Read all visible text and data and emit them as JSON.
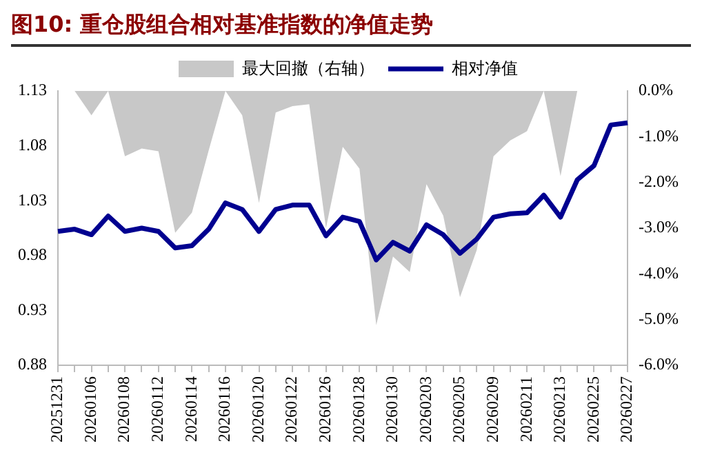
{
  "chart_data": {
    "type": "line",
    "title": "图10:  重仓股组合相对基准指数的净值走势",
    "categories": [
      "20251231",
      null,
      "20260106",
      null,
      "20260108",
      null,
      "20260112",
      null,
      "20260114",
      null,
      "20260116",
      null,
      "20260120",
      null,
      "20260122",
      null,
      "20260126",
      null,
      "20260128",
      null,
      "20260130",
      null,
      "20260203",
      null,
      "20260205",
      null,
      "20260209",
      null,
      "20260211",
      null,
      "20260213",
      null,
      "20260225",
      null,
      "20260227"
    ],
    "series": [
      {
        "name": "最大回撤（右轴）",
        "type": "area",
        "axis": "y2",
        "color": "#c8c8c8",
        "values": [
          0,
          0,
          -0.53,
          0,
          -1.43,
          -1.26,
          -1.32,
          -3.1,
          -2.66,
          -1.3,
          0,
          -0.53,
          -2.45,
          -0.47,
          -0.33,
          -0.29,
          -3.0,
          -1.22,
          -1.7,
          -5.12,
          -3.62,
          -3.96,
          -2.04,
          -2.73,
          -4.51,
          -3.48,
          -1.43,
          -1.08,
          -0.88,
          0,
          -1.86,
          0,
          0,
          0,
          0
        ]
      },
      {
        "name": "相对净值",
        "type": "line",
        "color": "#000090",
        "values": [
          1.002,
          1.004,
          0.999,
          1.016,
          1.002,
          1.005,
          1.002,
          0.987,
          0.989,
          1.004,
          1.028,
          1.022,
          1.002,
          1.022,
          1.026,
          1.026,
          0.998,
          1.015,
          1.011,
          0.976,
          0.992,
          0.984,
          1.008,
          0.999,
          0.982,
          0.995,
          1.015,
          1.018,
          1.019,
          1.035,
          1.015,
          1.049,
          1.062,
          1.099,
          1.101
        ]
      }
    ],
    "ylim": [
      0.88,
      1.13
    ],
    "yticks": [
      0.88,
      0.93,
      0.98,
      1.03,
      1.08,
      1.13
    ],
    "y2lim": [
      -6,
      0
    ],
    "y2ticks": [
      {
        "value": -6,
        "label": "-6.0%"
      },
      {
        "value": -5,
        "label": "-5.0%"
      },
      {
        "value": -4,
        "label": "-4.0%"
      },
      {
        "value": -3,
        "label": "-3.0%"
      },
      {
        "value": -2,
        "label": "-2.0%"
      },
      {
        "value": -1,
        "label": "-1.0%"
      },
      {
        "value": 0,
        "label": "0.0%"
      }
    ],
    "grid": false,
    "legend": "top"
  }
}
